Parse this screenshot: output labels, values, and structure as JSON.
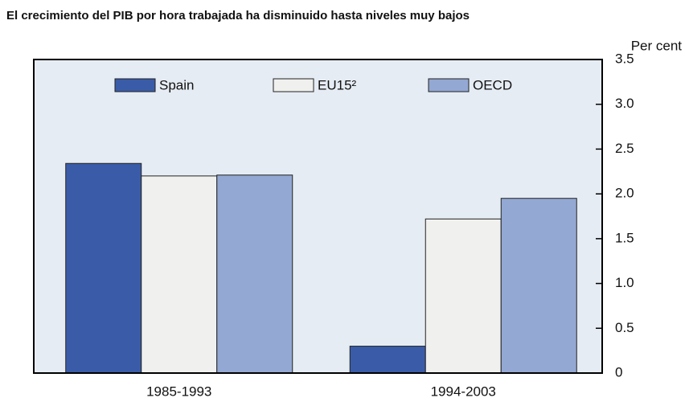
{
  "chart_data": {
    "type": "bar",
    "title": "El crecimiento del PIB por hora trabajada ha disminuido hasta niveles muy bajos",
    "y_label": "Per cent",
    "categories": [
      "1985-1993",
      "1994-2003"
    ],
    "series": [
      {
        "name": "Spain",
        "color": "#3a5ca8",
        "values": [
          2.34,
          0.3
        ]
      },
      {
        "name": "EU15²",
        "color": "#f0f0ee",
        "values": [
          2.2,
          1.72
        ]
      },
      {
        "name": "OECD",
        "color": "#93a8d2",
        "values": [
          2.21,
          1.95
        ]
      }
    ],
    "ylim": [
      0,
      3.5
    ],
    "yticks": [
      0,
      0.5,
      {
        "value": 1,
        "label": "1.0"
      },
      1.5,
      {
        "value": 2,
        "label": "2.0"
      },
      2.5,
      {
        "value": 3,
        "label": "3.0"
      },
      3.5
    ],
    "legend": "top",
    "grid": false
  }
}
